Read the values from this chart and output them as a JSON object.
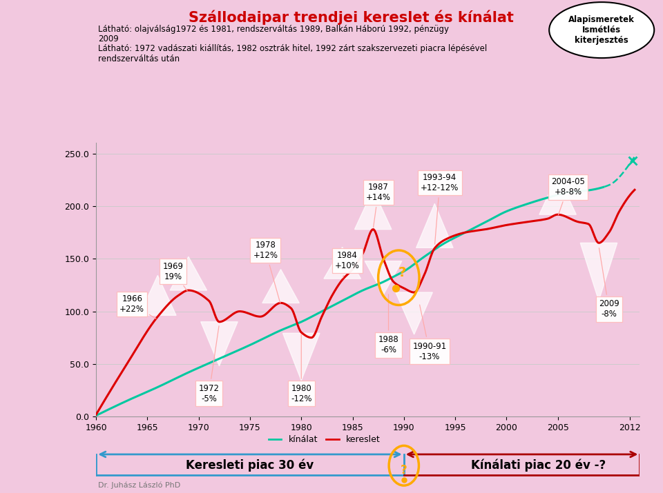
{
  "title": "Szállodaipar trendjei kereslet és kínálat",
  "title_color": "#cc0000",
  "bg_color": "#f2c8df",
  "subtitle1": "Látható: olajválság1972 és 1981, rendszerváltás 1989, Balkán Háború 1992, pénzügy",
  "subtitle1b": "2009",
  "subtitle2": "Látható: 1972 vadászati kiállítás, 1982 osztrák hitel, 1992 zárt szakszervezeti piacra lépésével",
  "subtitle2b": "rendszerváltás után",
  "xlabel_years": [
    1960,
    1965,
    1970,
    1975,
    1980,
    1985,
    1990,
    1995,
    2000,
    2005,
    2012
  ],
  "yticks": [
    0.0,
    50.0,
    100.0,
    150.0,
    200.0,
    250.0
  ],
  "xmin": 1960,
  "xmax": 2013,
  "ymin": 0,
  "ymax": 260,
  "kinalt_color": "#00c8a0",
  "kereslet_color": "#dd0000",
  "kinalt_label": "kínálat",
  "kereslet_label": "kereslet",
  "corner_box": "Alapismeretek\nIsmétlés\nkiterjesztés",
  "arrow_left_label": "Keresleti piac 30 év",
  "arrow_right_label": "Kínálati piac 20 év -?",
  "dr_label": "Dr. Juhász László PhD",
  "spike_color": "white",
  "spike_alpha": 0.7,
  "ann_box_color": "white",
  "ann_edge_color": "#ffbbbb"
}
